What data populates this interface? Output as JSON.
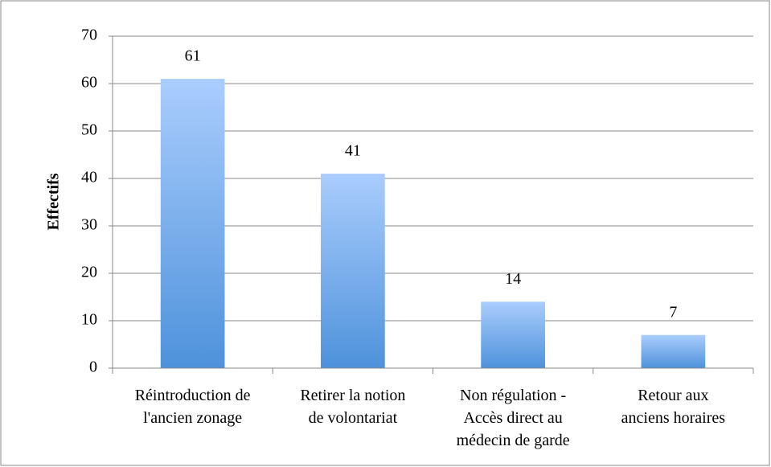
{
  "chart_data": {
    "type": "bar",
    "y_label": "Effectifs",
    "categories": [
      [
        "Réintroduction de",
        "l'ancien zonage"
      ],
      [
        "Retirer la notion",
        "de volontariat"
      ],
      [
        "Non régulation -",
        "Accès direct au",
        "médecin de garde"
      ],
      [
        "Retour aux",
        "anciens horaires"
      ]
    ],
    "values": [
      61,
      41,
      14,
      7
    ],
    "color_top": "#aacdfd",
    "color_bottom": "#4e92db",
    "ylim": [
      0,
      70
    ],
    "yticks": [
      0,
      10,
      20,
      30,
      40,
      50,
      60,
      70
    ],
    "grid": true
  }
}
